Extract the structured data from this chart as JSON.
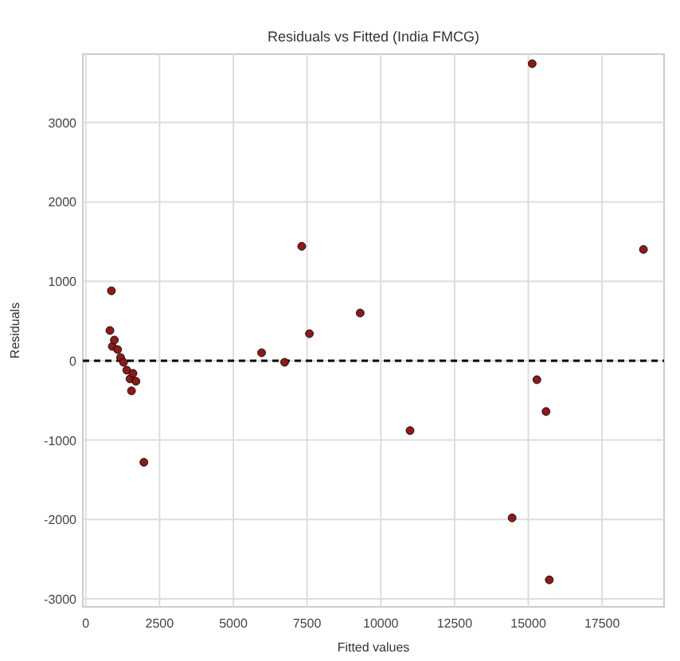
{
  "chart_data": {
    "type": "scatter",
    "title": "Residuals vs Fitted (India FMCG)",
    "xlabel": "Fitted values",
    "ylabel": "Residuals",
    "xlim": [
      -100,
      19600
    ],
    "ylim": [
      -3100,
      3860
    ],
    "xticks": [
      0,
      2500,
      5000,
      7500,
      10000,
      12500,
      15000,
      17500
    ],
    "yticks": [
      -3000,
      -2000,
      -1000,
      0,
      1000,
      2000,
      3000
    ],
    "grid": true,
    "marker": "circle",
    "ref_lines": [
      {
        "axis": "y",
        "value": 0,
        "color": "#000000",
        "line_style": "dashed"
      }
    ],
    "series": [
      {
        "color": "#8b1a1a",
        "x": [
          870,
          820,
          900,
          970,
          1080,
          1180,
          1280,
          1390,
          1500,
          1600,
          1700,
          1550,
          1970,
          5960,
          6740,
          7320,
          7580,
          9300,
          10990,
          14450,
          15130,
          15290,
          15600,
          15710,
          18900
        ],
        "values": [
          880,
          380,
          180,
          260,
          140,
          40,
          -20,
          -120,
          -230,
          -160,
          -260,
          -380,
          -1280,
          100,
          -20,
          1440,
          340,
          600,
          -880,
          -1980,
          3740,
          -240,
          -640,
          -2760,
          1400
        ]
      }
    ]
  }
}
